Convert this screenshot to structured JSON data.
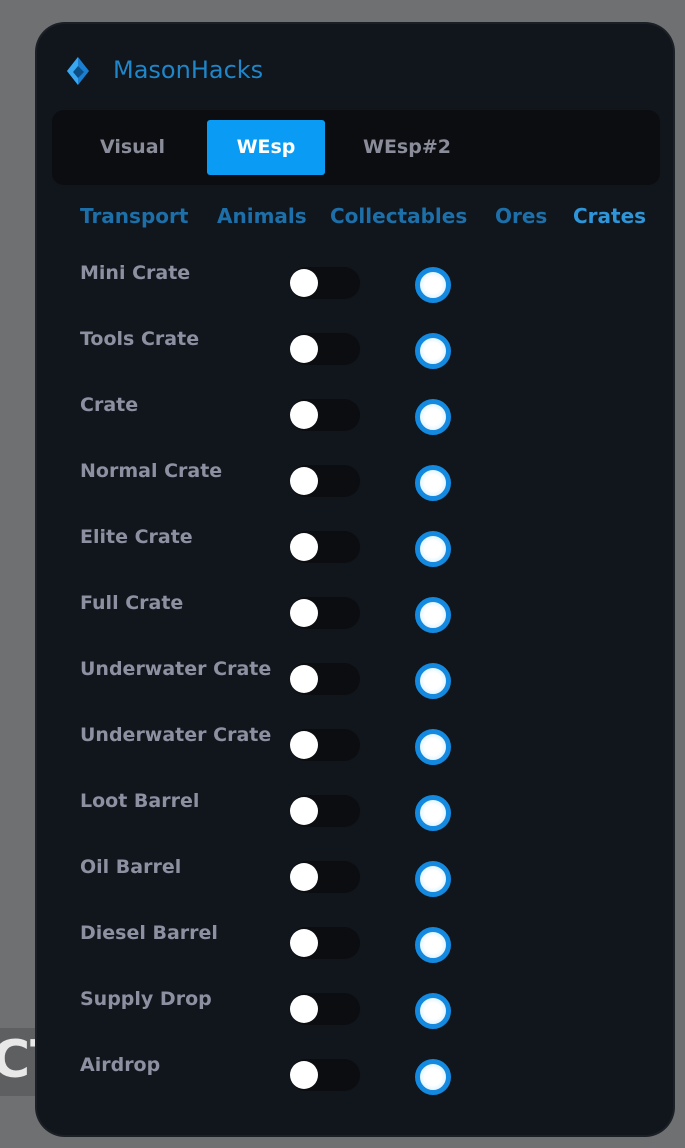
{
  "background": {
    "partial_text": "CT"
  },
  "header": {
    "title": "MasonHacks",
    "logo_icon": "diamond-gem-icon",
    "accent": "#0a9bf5"
  },
  "tabs": [
    {
      "label": "Visual",
      "active": false
    },
    {
      "label": "WEsp",
      "active": true
    },
    {
      "label": "WEsp#2",
      "active": false
    }
  ],
  "subtabs": [
    {
      "label": "Transport",
      "active": false
    },
    {
      "label": "Animals",
      "active": false
    },
    {
      "label": "Collectables",
      "active": false
    },
    {
      "label": "Ores",
      "active": false
    },
    {
      "label": "Crates",
      "active": true
    }
  ],
  "rows": [
    {
      "label": "Mini Crate",
      "toggle": false,
      "radio": true
    },
    {
      "label": "Tools Crate",
      "toggle": false,
      "radio": true
    },
    {
      "label": "Crate",
      "toggle": false,
      "radio": true
    },
    {
      "label": "Normal Crate",
      "toggle": false,
      "radio": true
    },
    {
      "label": "Elite Crate",
      "toggle": false,
      "radio": true
    },
    {
      "label": "Full Crate",
      "toggle": false,
      "radio": true
    },
    {
      "label": "Underwater Crate",
      "toggle": false,
      "radio": true
    },
    {
      "label": "Underwater Crate",
      "toggle": false,
      "radio": true
    },
    {
      "label": "Loot Barrel",
      "toggle": false,
      "radio": true
    },
    {
      "label": "Oil Barrel",
      "toggle": false,
      "radio": true
    },
    {
      "label": "Diesel Barrel",
      "toggle": false,
      "radio": true
    },
    {
      "label": "Supply Drop",
      "toggle": false,
      "radio": true
    },
    {
      "label": "Airdrop",
      "toggle": false,
      "radio": true
    }
  ]
}
